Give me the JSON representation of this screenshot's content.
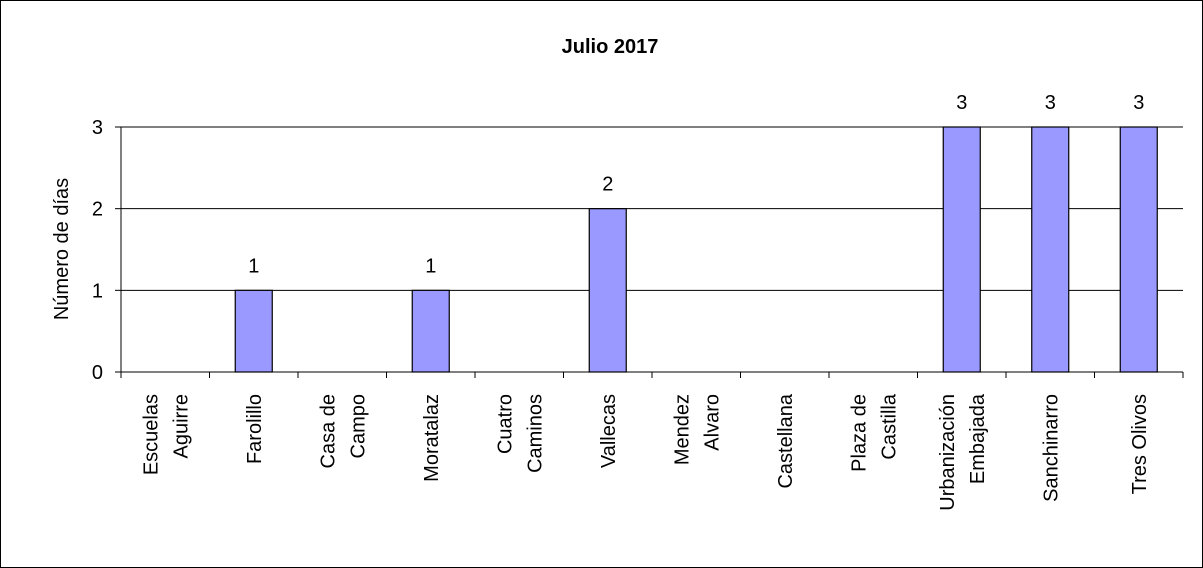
{
  "chart_data": {
    "type": "bar",
    "title": "Julio 2017",
    "ylabel": "Número de días",
    "xlabel": "",
    "ylim": [
      0,
      3
    ],
    "yticks": [
      0,
      1,
      2,
      3
    ],
    "grid": true,
    "bar_color": "#9999ff",
    "categories": [
      [
        "Escuelas",
        "Aguirre"
      ],
      [
        "Farolillo"
      ],
      [
        "Casa de",
        "Campo"
      ],
      [
        "Moratalaz"
      ],
      [
        "Cuatro",
        "Caminos"
      ],
      [
        "Vallecas"
      ],
      [
        "Mendez",
        "Alvaro"
      ],
      [
        "Castellana"
      ],
      [
        "Plaza de",
        "Castilla"
      ],
      [
        "Urbanización",
        "Embajada"
      ],
      [
        "Sanchinarro"
      ],
      [
        "Tres Olivos"
      ]
    ],
    "values": [
      0,
      1,
      0,
      1,
      0,
      2,
      0,
      0,
      0,
      3,
      3,
      3
    ],
    "data_labels": [
      "",
      "1",
      "",
      "1",
      "",
      "2",
      "",
      "",
      "",
      "3",
      "3",
      "3"
    ]
  }
}
